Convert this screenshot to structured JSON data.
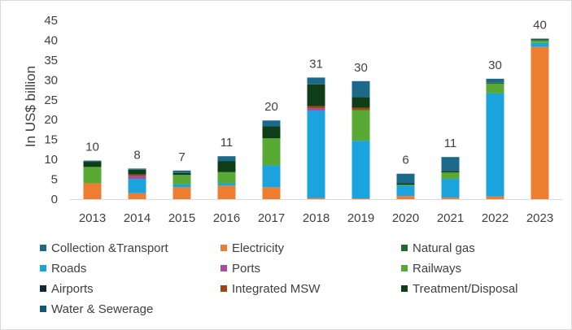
{
  "chart_data": {
    "type": "bar",
    "stacked": true,
    "title": "",
    "xlabel": "",
    "ylabel": "In US$ billion",
    "ylim": [
      0,
      45
    ],
    "yticks": [
      0,
      5,
      10,
      15,
      20,
      25,
      30,
      35,
      40,
      45
    ],
    "grid": false,
    "legend_position": "bottom",
    "categories": [
      "2013",
      "2014",
      "2015",
      "2016",
      "2017",
      "2018",
      "2019",
      "2020",
      "2021",
      "2022",
      "2023"
    ],
    "totals_labels": [
      "10",
      "8",
      "7",
      "11",
      "20",
      "31",
      "30",
      "6",
      "11",
      "30",
      "40"
    ],
    "series": [
      {
        "name": "Electricity",
        "color": "#ED7D31",
        "values": [
          4.0,
          1.5,
          3.0,
          3.4,
          3.0,
          0.3,
          0.2,
          0.8,
          0.4,
          0.7,
          38.3
        ]
      },
      {
        "name": "Roads",
        "color": "#1AA3DC",
        "values": [
          0,
          3.6,
          0.7,
          0.6,
          5.5,
          22.0,
          14.5,
          2.6,
          4.7,
          25.9,
          1.0
        ]
      },
      {
        "name": "Ports",
        "color": "#A64CA6",
        "values": [
          0,
          0.7,
          0,
          0,
          0,
          0.6,
          0,
          0,
          0,
          0,
          0
        ]
      },
      {
        "name": "Railways",
        "color": "#59AA34",
        "values": [
          4.1,
          0,
          2.4,
          2.8,
          6.8,
          0,
          7.7,
          0.2,
          1.6,
          2.5,
          0.6
        ]
      },
      {
        "name": "Integrated MSW",
        "color": "#A0470F",
        "values": [
          0,
          0.4,
          0,
          0,
          0,
          0.5,
          0.6,
          0,
          0,
          0,
          0
        ]
      },
      {
        "name": "Natural gas",
        "color": "#1E6B2A",
        "values": [
          0,
          0,
          0,
          0,
          0,
          0,
          0,
          0,
          0,
          0,
          0.2
        ]
      },
      {
        "name": "Treatment/Disposal",
        "color": "#0F3D18",
        "values": [
          1.3,
          1.2,
          0.5,
          2.8,
          3.0,
          5.5,
          2.7,
          0.4,
          0.4,
          0.2,
          0.1
        ]
      },
      {
        "name": "Airports",
        "color": "#0D2733",
        "values": [
          0,
          0,
          0,
          0,
          0,
          0,
          0,
          0,
          0,
          0,
          0
        ]
      },
      {
        "name": "Collection &Transport",
        "color": "#1B6A8C",
        "values": [
          0.3,
          0.3,
          0.6,
          1.2,
          1.5,
          1.7,
          4.0,
          2.4,
          3.5,
          1.0,
          0.2
        ]
      },
      {
        "name": "Water & Sewerage",
        "color": "#145873",
        "values": [
          0,
          0,
          0,
          0,
          0,
          0,
          0,
          0,
          0,
          0,
          0
        ]
      }
    ]
  },
  "legend": [
    {
      "label": "Collection &Transport",
      "color": "#1B6A8C"
    },
    {
      "label": "Electricity",
      "color": "#ED7D31"
    },
    {
      "label": "Natural gas",
      "color": "#1E6B2A"
    },
    {
      "label": "Roads",
      "color": "#1AA3DC"
    },
    {
      "label": "Ports",
      "color": "#A64CA6"
    },
    {
      "label": "Railways",
      "color": "#59AA34"
    },
    {
      "label": "Airports",
      "color": "#0D2733"
    },
    {
      "label": "Integrated MSW",
      "color": "#A0470F"
    },
    {
      "label": "Treatment/Disposal",
      "color": "#0F3D18"
    },
    {
      "label": "Water & Sewerage",
      "color": "#145873"
    }
  ]
}
